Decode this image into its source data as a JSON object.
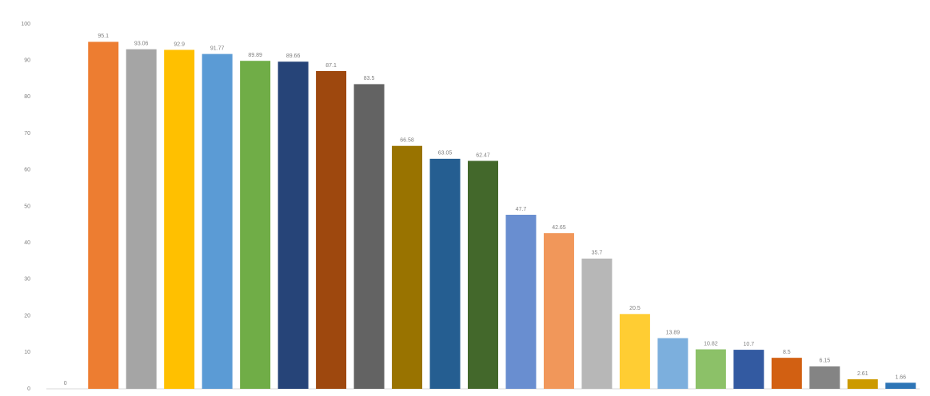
{
  "chart_data": {
    "type": "bar",
    "categories": [
      null,
      null,
      null,
      null,
      null,
      null,
      null,
      null,
      null,
      null,
      null,
      null,
      null,
      null,
      null,
      null,
      null,
      null,
      null,
      null,
      null,
      null,
      null
    ],
    "values": [
      0,
      95.1,
      93.06,
      92.9,
      91.77,
      89.89,
      89.66,
      87.1,
      83.5,
      66.58,
      63.05,
      62.47,
      47.7,
      42.65,
      35.7,
      20.5,
      13.89,
      10.82,
      10.7,
      8.5,
      6.15,
      2.61,
      1.66
    ],
    "colors": [
      "#4472c4",
      "#ed7d31",
      "#a5a5a5",
      "#ffc000",
      "#5b9bd5",
      "#70ad47",
      "#264478",
      "#9e480e",
      "#636363",
      "#997300",
      "#255e91",
      "#43682b",
      "#698ed0",
      "#f1975a",
      "#b7b7b7",
      "#ffcd33",
      "#7cafdd",
      "#8cc168",
      "#335aa1",
      "#d26012",
      "#848484",
      "#cc9a00",
      "#2e75b6"
    ],
    "ylim": [
      0,
      100
    ],
    "yticks": [
      0,
      10,
      20,
      30,
      40,
      50,
      60,
      70,
      80,
      90,
      100
    ],
    "grid": false
  }
}
